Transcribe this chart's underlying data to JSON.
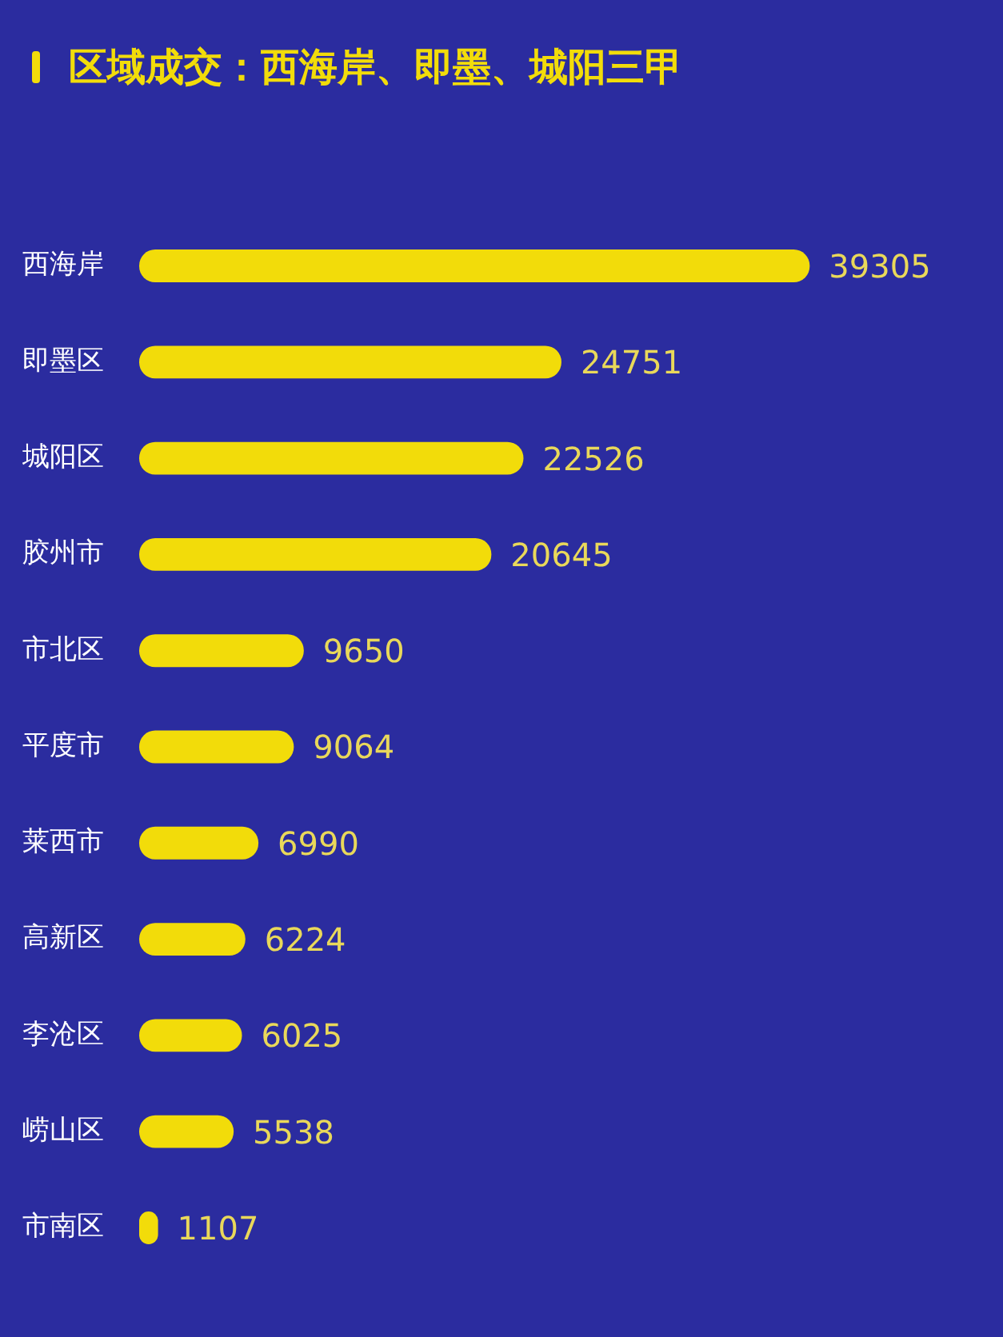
{
  "chart_data": {
    "type": "bar",
    "orientation": "horizontal",
    "title": "区域成交：西海岸、即墨、城阳三甲",
    "categories": [
      "西海岸",
      "即墨区",
      "城阳区",
      "胶州市",
      "市北区",
      "平度市",
      "莱西市",
      "高新区",
      "李沧区",
      "崂山区",
      "市南区"
    ],
    "values": [
      39305,
      24751,
      22526,
      20645,
      9650,
      9064,
      6990,
      6224,
      6025,
      5538,
      1107
    ],
    "color": "#f2dc0a",
    "data_labels": true,
    "grid": false,
    "legend": false,
    "tick_labels": "y"
  }
}
